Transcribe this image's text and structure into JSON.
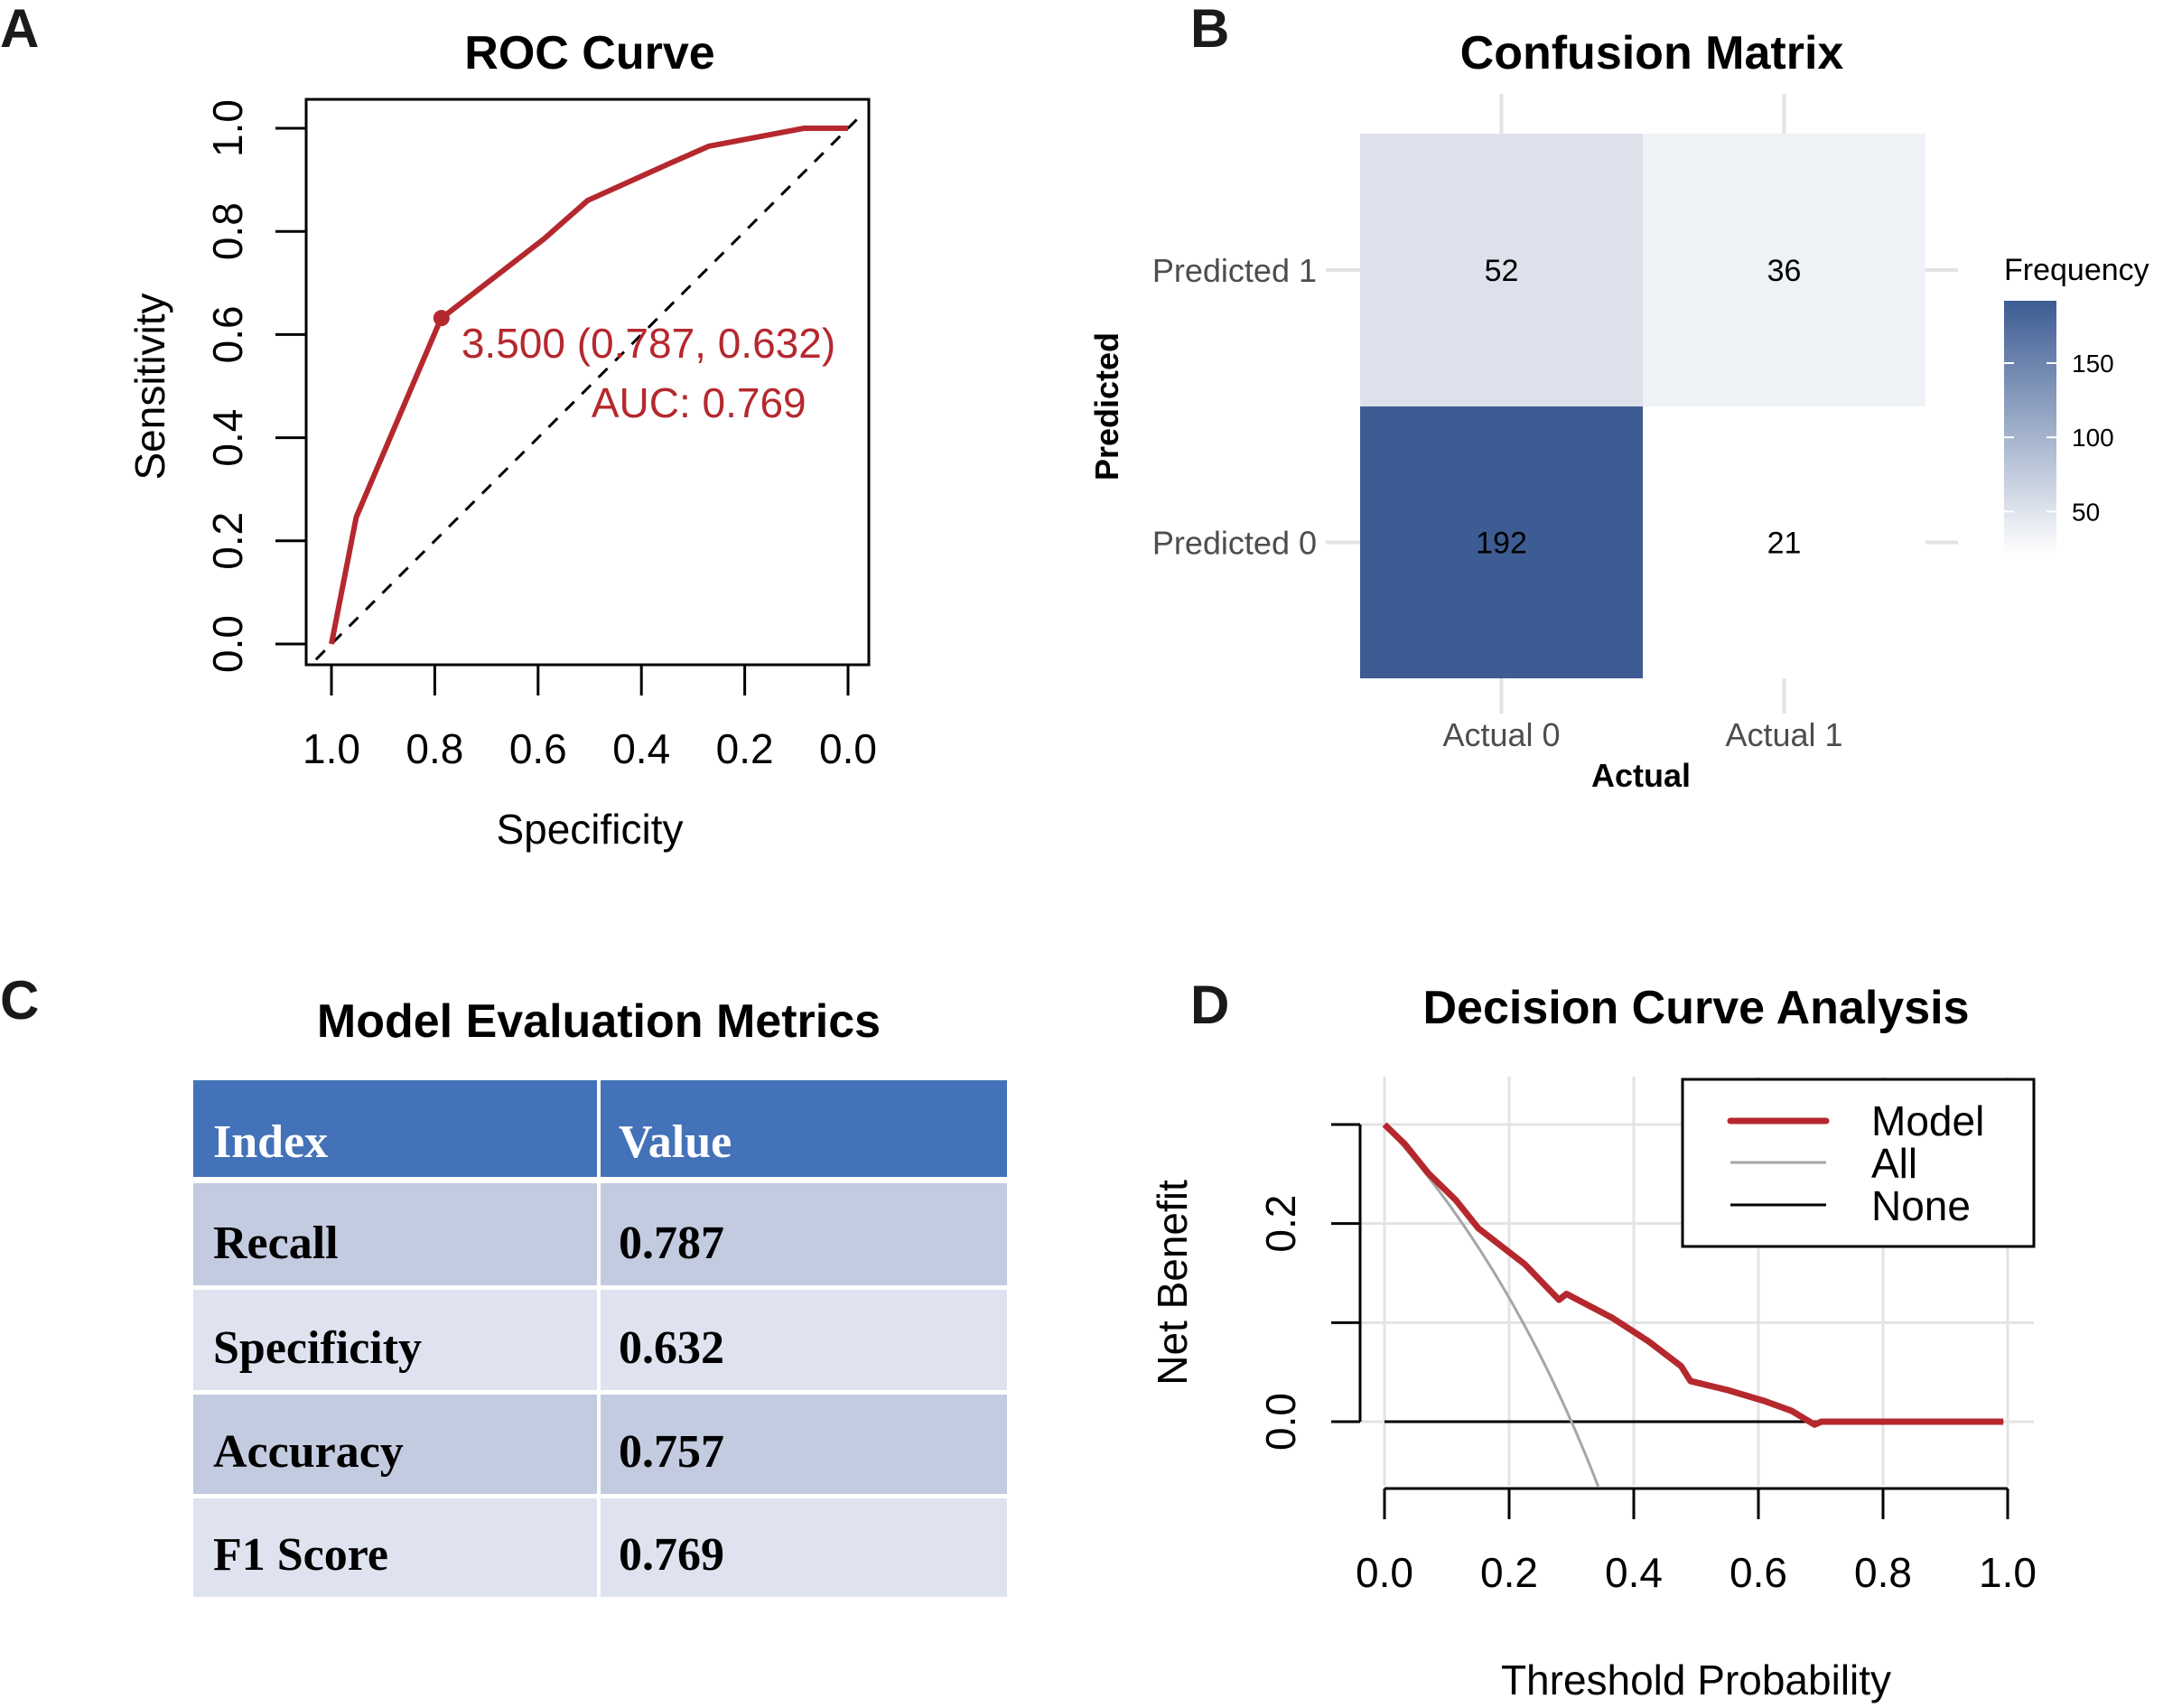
{
  "panels": {
    "A": {
      "letter": "A"
    },
    "B": {
      "letter": "B"
    },
    "C": {
      "letter": "C"
    },
    "D": {
      "letter": "D"
    }
  },
  "colors": {
    "model_red": "#b5282e",
    "all_gray": "#a6a6a6",
    "none_black": "#000000",
    "heat_high": "#3d5c93",
    "heat_low": "#ffffff",
    "table_header": "#4472b8",
    "table_row_dark": "#c3cbe0",
    "table_row_light": "#dfe2ef",
    "grid": "#e3e3e3"
  },
  "chart_data": [
    {
      "id": "roc",
      "type": "line",
      "title": "ROC Curve",
      "xlabel": "Specificity",
      "ylabel": "Sensitivity",
      "x_reversed": true,
      "xlim": [
        1.0,
        0.0
      ],
      "ylim": [
        0.0,
        1.0
      ],
      "xticks": [
        1.0,
        0.8,
        0.6,
        0.4,
        0.2,
        0.0
      ],
      "xtick_labels": [
        "1.0",
        "0.8",
        "0.6",
        "0.4",
        "0.2",
        "0.0"
      ],
      "yticks": [
        0.0,
        0.2,
        0.4,
        0.6,
        0.8,
        1.0
      ],
      "ytick_labels": [
        "0.0",
        "0.2",
        "0.4",
        "0.6",
        "0.8",
        "1.0"
      ],
      "grid": false,
      "series": [
        {
          "name": "ROC",
          "specificity": [
            1.0,
            0.952,
            0.788,
            0.588,
            0.504,
            0.347,
            0.27,
            0.085,
            0.0
          ],
          "sensitivity": [
            0.0,
            0.246,
            0.631,
            0.786,
            0.86,
            0.931,
            0.965,
            1.0,
            1.0
          ]
        }
      ],
      "reference_line": {
        "from": [
          1.0,
          0.0
        ],
        "to": [
          0.0,
          1.0
        ],
        "style": "dashed"
      },
      "best_threshold": {
        "threshold": 3.5,
        "specificity": 0.787,
        "sensitivity": 0.632,
        "label": "3.500 (0.787, 0.632)"
      },
      "auc_label": "AUC: 0.769",
      "auc": 0.769
    },
    {
      "id": "confusion",
      "type": "heatmap",
      "title": "Confusion Matrix",
      "xlabel": "Actual",
      "ylabel": "Predicted",
      "x_categories": [
        "Actual 0",
        "Actual 1"
      ],
      "y_categories": [
        "Predicted 1",
        "Predicted 0"
      ],
      "values": [
        [
          52,
          36
        ],
        [
          192,
          21
        ]
      ],
      "legend": {
        "title": "Frequency",
        "ticks": [
          50,
          100,
          150
        ],
        "tick_labels": [
          "50",
          "100",
          "150"
        ],
        "range": [
          21,
          192
        ],
        "placement": "right"
      }
    },
    {
      "id": "metrics",
      "type": "table",
      "title": "Model Evaluation Metrics",
      "columns": [
        "Index",
        "Value"
      ],
      "rows": [
        [
          "Recall",
          "0.787"
        ],
        [
          "Specificity",
          "0.632"
        ],
        [
          "Accuracy",
          "0.757"
        ],
        [
          "F1 Score",
          "0.769"
        ]
      ]
    },
    {
      "id": "dca",
      "type": "line",
      "title": "Decision Curve Analysis",
      "xlabel": "Threshold Probability",
      "ylabel": "Net Benefit",
      "xlim": [
        0.0,
        1.0
      ],
      "ylim": [
        -0.065,
        0.3
      ],
      "xticks": [
        0.0,
        0.2,
        0.4,
        0.6,
        0.8,
        1.0
      ],
      "xtick_labels": [
        "0.0",
        "0.2",
        "0.4",
        "0.6",
        "0.8",
        "1.0"
      ],
      "yticks": [
        0.0,
        0.1,
        0.2,
        0.3
      ],
      "ytick_labels": [
        "0.0",
        "",
        "0.2",
        ""
      ],
      "grid": true,
      "legend": {
        "placement": "top-right",
        "entries": [
          "Model",
          "All",
          "None"
        ]
      },
      "series": [
        {
          "name": "Model",
          "x": [
            0.0,
            0.033,
            0.07,
            0.114,
            0.151,
            0.225,
            0.28,
            0.292,
            0.365,
            0.424,
            0.476,
            0.491,
            0.55,
            0.609,
            0.653,
            0.69,
            0.701,
            0.993
          ],
          "y": [
            0.3,
            0.28,
            0.251,
            0.224,
            0.195,
            0.159,
            0.123,
            0.129,
            0.105,
            0.081,
            0.056,
            0.041,
            0.032,
            0.021,
            0.011,
            -0.003,
            0.0,
            0.0
          ]
        },
        {
          "name": "All",
          "prevalence": 0.3,
          "formula": "p - (1-p)*t/(1-t)",
          "x_end": 0.343
        },
        {
          "name": "None",
          "x": [
            0.0,
            0.993
          ],
          "y": [
            0.0,
            0.0
          ]
        }
      ]
    }
  ]
}
